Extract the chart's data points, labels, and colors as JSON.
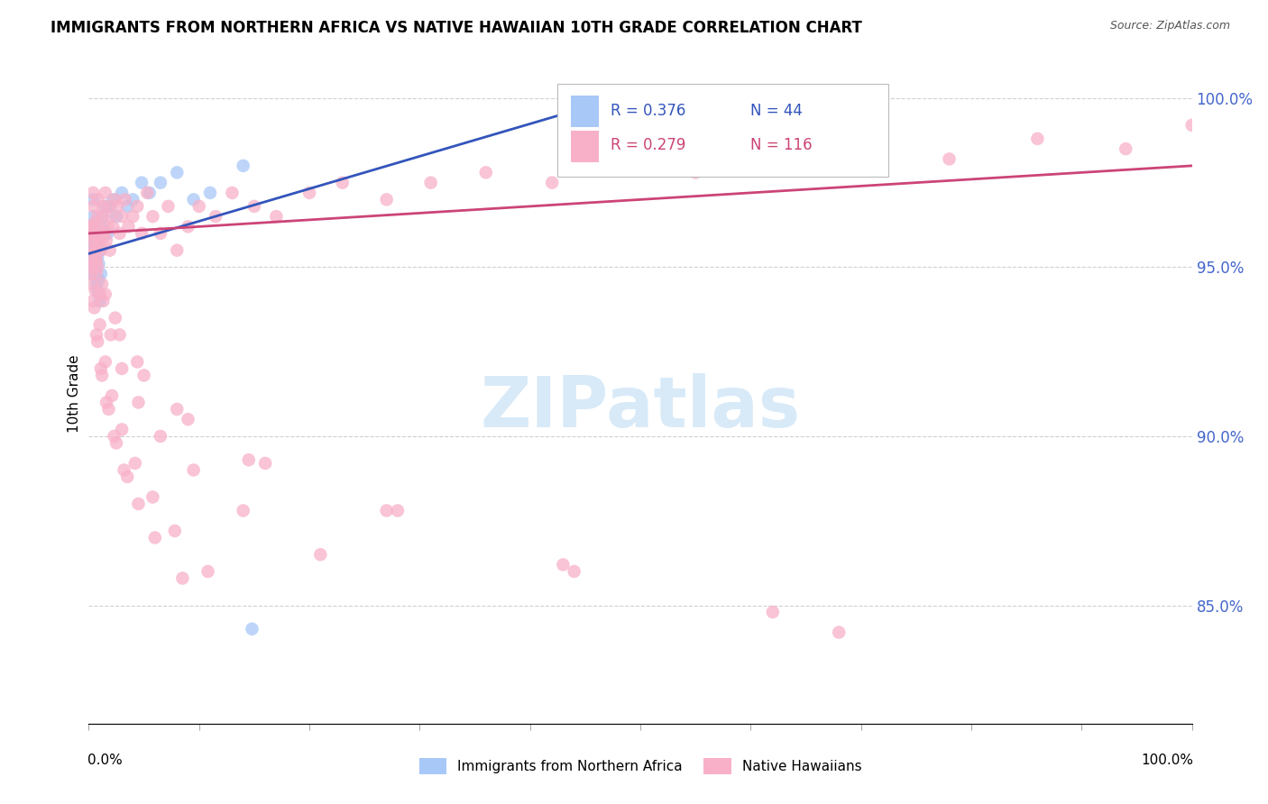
{
  "title": "IMMIGRANTS FROM NORTHERN AFRICA VS NATIVE HAWAIIAN 10TH GRADE CORRELATION CHART",
  "source": "Source: ZipAtlas.com",
  "ylabel": "10th Grade",
  "blue_color": "#a8c8f8",
  "pink_color": "#f8b0c8",
  "blue_line_color": "#3355bb",
  "pink_line_color": "#cc4477",
  "blue_R": 0.376,
  "blue_N": 44,
  "pink_R": 0.279,
  "pink_N": 116,
  "ytick_values": [
    0.85,
    0.9,
    0.95,
    1.0
  ],
  "ytick_labels": [
    "85.0%",
    "90.0%",
    "95.0%",
    "100.0%"
  ],
  "xlim": [
    0.0,
    1.0
  ],
  "ylim": [
    0.815,
    1.01
  ],
  "watermark_color": "#d8eaf8",
  "blue_points_x": [
    0.001,
    0.002,
    0.002,
    0.003,
    0.003,
    0.003,
    0.004,
    0.004,
    0.004,
    0.005,
    0.005,
    0.005,
    0.006,
    0.006,
    0.006,
    0.007,
    0.007,
    0.008,
    0.008,
    0.008,
    0.009,
    0.009,
    0.01,
    0.01,
    0.011,
    0.012,
    0.013,
    0.014,
    0.015,
    0.017,
    0.019,
    0.022,
    0.025,
    0.03,
    0.035,
    0.04,
    0.048,
    0.055,
    0.065,
    0.08,
    0.095,
    0.11,
    0.14,
    0.148
  ],
  "blue_points_y": [
    0.951,
    0.955,
    0.948,
    0.953,
    0.957,
    0.961,
    0.958,
    0.965,
    0.97,
    0.955,
    0.96,
    0.963,
    0.948,
    0.952,
    0.957,
    0.945,
    0.958,
    0.943,
    0.947,
    0.953,
    0.946,
    0.951,
    0.94,
    0.955,
    0.948,
    0.962,
    0.965,
    0.96,
    0.968,
    0.96,
    0.968,
    0.97,
    0.965,
    0.972,
    0.968,
    0.97,
    0.975,
    0.972,
    0.975,
    0.978,
    0.97,
    0.972,
    0.98,
    0.843
  ],
  "pink_points_x": [
    0.002,
    0.003,
    0.003,
    0.004,
    0.004,
    0.005,
    0.005,
    0.006,
    0.006,
    0.007,
    0.007,
    0.008,
    0.008,
    0.009,
    0.009,
    0.01,
    0.01,
    0.011,
    0.012,
    0.012,
    0.013,
    0.014,
    0.015,
    0.016,
    0.017,
    0.018,
    0.019,
    0.02,
    0.022,
    0.024,
    0.026,
    0.028,
    0.03,
    0.033,
    0.036,
    0.04,
    0.044,
    0.048,
    0.053,
    0.058,
    0.065,
    0.072,
    0.08,
    0.09,
    0.1,
    0.115,
    0.13,
    0.15,
    0.17,
    0.2,
    0.23,
    0.27,
    0.31,
    0.36,
    0.42,
    0.48,
    0.55,
    0.62,
    0.7,
    0.78,
    0.86,
    0.94,
    1.0,
    0.003,
    0.005,
    0.008,
    0.012,
    0.018,
    0.025,
    0.035,
    0.002,
    0.004,
    0.007,
    0.011,
    0.016,
    0.023,
    0.032,
    0.045,
    0.06,
    0.085,
    0.003,
    0.006,
    0.01,
    0.015,
    0.021,
    0.03,
    0.042,
    0.058,
    0.078,
    0.108,
    0.004,
    0.008,
    0.013,
    0.02,
    0.03,
    0.045,
    0.065,
    0.095,
    0.14,
    0.21,
    0.003,
    0.007,
    0.015,
    0.028,
    0.05,
    0.09,
    0.16,
    0.28,
    0.43,
    0.62,
    0.003,
    0.006,
    0.012,
    0.024,
    0.044,
    0.08,
    0.145,
    0.27,
    0.44,
    0.68
  ],
  "pink_points_y": [
    0.955,
    0.95,
    0.962,
    0.968,
    0.972,
    0.958,
    0.963,
    0.952,
    0.96,
    0.948,
    0.955,
    0.965,
    0.97,
    0.958,
    0.962,
    0.942,
    0.96,
    0.955,
    0.965,
    0.958,
    0.968,
    0.96,
    0.972,
    0.958,
    0.962,
    0.968,
    0.955,
    0.965,
    0.962,
    0.97,
    0.968,
    0.96,
    0.965,
    0.97,
    0.962,
    0.965,
    0.968,
    0.96,
    0.972,
    0.965,
    0.96,
    0.968,
    0.955,
    0.962,
    0.968,
    0.965,
    0.972,
    0.968,
    0.965,
    0.972,
    0.975,
    0.97,
    0.975,
    0.978,
    0.975,
    0.98,
    0.978,
    0.982,
    0.985,
    0.982,
    0.988,
    0.985,
    0.992,
    0.945,
    0.938,
    0.928,
    0.918,
    0.908,
    0.898,
    0.888,
    0.948,
    0.94,
    0.93,
    0.92,
    0.91,
    0.9,
    0.89,
    0.88,
    0.87,
    0.858,
    0.952,
    0.943,
    0.933,
    0.922,
    0.912,
    0.902,
    0.892,
    0.882,
    0.872,
    0.86,
    0.958,
    0.95,
    0.94,
    0.93,
    0.92,
    0.91,
    0.9,
    0.89,
    0.878,
    0.865,
    0.96,
    0.952,
    0.942,
    0.93,
    0.918,
    0.905,
    0.892,
    0.878,
    0.862,
    0.848,
    0.962,
    0.955,
    0.945,
    0.935,
    0.922,
    0.908,
    0.893,
    0.878,
    0.86,
    0.842
  ]
}
